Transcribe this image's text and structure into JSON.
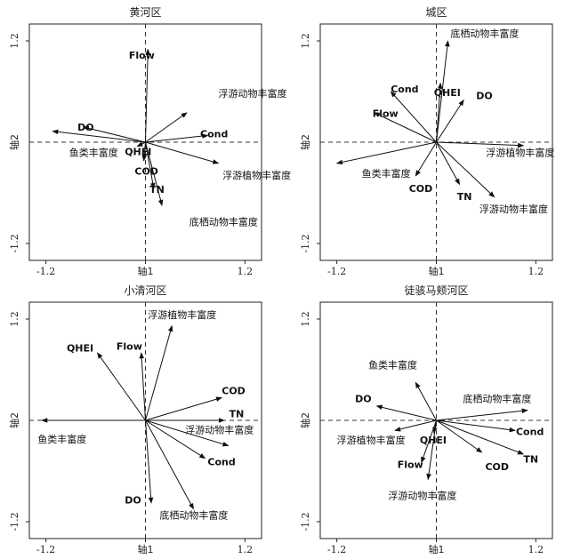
{
  "chart_data": [
    {
      "type": "scatter",
      "title": "黄河区",
      "xlabel": "轴1",
      "ylabel": "轴2",
      "xlim": [
        -1.4,
        1.4
      ],
      "ylim": [
        -1.4,
        1.4
      ],
      "xticks": [
        "-1.2",
        "0",
        "1.2"
      ],
      "yticks": [
        "-1.2",
        "1.2"
      ],
      "xtick_values": [
        -1.2,
        0,
        1.2
      ],
      "ytick_values": [
        -1.2,
        1.2
      ],
      "arrows": [
        {
          "label": "Flow",
          "x": 0.03,
          "y": 1.1,
          "lx": -0.2,
          "ly": 1.02,
          "bold": true
        },
        {
          "label": "浮游动物丰富度",
          "x": 0.5,
          "y": 0.35,
          "lx": 0.88,
          "ly": 0.57,
          "bold": false
        },
        {
          "label": "Cond",
          "x": 0.75,
          "y": 0.08,
          "lx": 0.66,
          "ly": 0.09,
          "bold": true
        },
        {
          "label": "DO",
          "x": -0.75,
          "y": 0.18,
          "lx": -0.82,
          "ly": 0.17,
          "bold": true
        },
        {
          "label": "鱼类丰富度",
          "x": -1.12,
          "y": 0.13,
          "lx": -0.92,
          "ly": -0.13,
          "bold": false
        },
        {
          "label": "QHEI",
          "x": -0.1,
          "y": -0.05,
          "lx": -0.25,
          "ly": -0.12,
          "bold": true
        },
        {
          "label": "浮游植物丰富度",
          "x": 0.88,
          "y": -0.25,
          "lx": 0.93,
          "ly": -0.4,
          "bold": false
        },
        {
          "label": "COD",
          "x": -0.02,
          "y": -0.22,
          "lx": -0.13,
          "ly": -0.35,
          "bold": true
        },
        {
          "label": "TN",
          "x": 0.1,
          "y": -0.55,
          "lx": 0.05,
          "ly": -0.57,
          "bold": true
        },
        {
          "label": "底栖动物丰富度",
          "x": 0.2,
          "y": -0.75,
          "lx": 0.53,
          "ly": -0.95,
          "bold": false
        }
      ]
    },
    {
      "type": "scatter",
      "title": "城区",
      "xlabel": "轴1",
      "ylabel": "轴2",
      "xlim": [
        -1.4,
        1.4
      ],
      "ylim": [
        -1.4,
        1.4
      ],
      "xticks": [
        "-1.2",
        "0",
        "1.2"
      ],
      "yticks": [
        "-1.2",
        "1.2"
      ],
      "xtick_values": [
        -1.2,
        0,
        1.2
      ],
      "ytick_values": [
        -1.2,
        1.2
      ],
      "arrows": [
        {
          "label": "底栖动物丰富度",
          "x": 0.14,
          "y": 1.2,
          "lx": 0.17,
          "ly": 1.28,
          "bold": false
        },
        {
          "label": "QHEI",
          "x": 0.05,
          "y": 0.7,
          "lx": -0.03,
          "ly": 0.58,
          "bold": true
        },
        {
          "label": "Cond",
          "x": -0.55,
          "y": 0.6,
          "lx": -0.55,
          "ly": 0.62,
          "bold": true
        },
        {
          "label": "DO",
          "x": 0.33,
          "y": 0.5,
          "lx": 0.48,
          "ly": 0.54,
          "bold": true
        },
        {
          "label": "Flow",
          "x": -0.75,
          "y": 0.35,
          "lx": -0.77,
          "ly": 0.33,
          "bold": true
        },
        {
          "label": "浮游植物丰富度",
          "x": 1.05,
          "y": -0.04,
          "lx": 0.6,
          "ly": -0.13,
          "bold": false
        },
        {
          "label": "鱼类丰富度",
          "x": -1.2,
          "y": -0.25,
          "lx": -0.9,
          "ly": -0.38,
          "bold": false
        },
        {
          "label": "COD",
          "x": -0.25,
          "y": -0.4,
          "lx": -0.33,
          "ly": -0.56,
          "bold": true
        },
        {
          "label": "TN",
          "x": 0.28,
          "y": -0.5,
          "lx": 0.25,
          "ly": -0.65,
          "bold": true
        },
        {
          "label": "浮游动物丰富度",
          "x": 0.7,
          "y": -0.65,
          "lx": 0.52,
          "ly": -0.8,
          "bold": false
        }
      ]
    },
    {
      "type": "scatter",
      "title": "小清河区",
      "xlabel": "轴1",
      "ylabel": "轴2",
      "xlim": [
        -1.4,
        1.4
      ],
      "ylim": [
        -1.4,
        1.4
      ],
      "xticks": [
        "-1.2",
        "0",
        "1.2"
      ],
      "yticks": [
        "-1.2",
        "1.2"
      ],
      "xtick_values": [
        -1.2,
        0,
        1.2
      ],
      "ytick_values": [
        -1.2,
        1.2
      ],
      "arrows": [
        {
          "label": "浮游植物丰富度",
          "x": 0.32,
          "y": 1.12,
          "lx": 0.03,
          "ly": 1.24,
          "bold": false
        },
        {
          "label": "QHEI",
          "x": -0.58,
          "y": 0.8,
          "lx": -0.95,
          "ly": 0.85,
          "bold": true
        },
        {
          "label": "Flow",
          "x": -0.05,
          "y": 0.8,
          "lx": -0.35,
          "ly": 0.87,
          "bold": true
        },
        {
          "label": "COD",
          "x": 0.92,
          "y": 0.27,
          "lx": 0.92,
          "ly": 0.34,
          "bold": true
        },
        {
          "label": "TN",
          "x": 0.95,
          "y": 0.0,
          "lx": 1.01,
          "ly": 0.07,
          "bold": true
        },
        {
          "label": "鱼类丰富度",
          "x": -1.25,
          "y": 0.0,
          "lx": -1.3,
          "ly": -0.23,
          "bold": false
        },
        {
          "label": "浮游动物丰富度",
          "x": 1.0,
          "y": -0.3,
          "lx": 0.48,
          "ly": -0.12,
          "bold": false
        },
        {
          "label": "Cond",
          "x": 0.72,
          "y": -0.45,
          "lx": 0.75,
          "ly": -0.5,
          "bold": true
        },
        {
          "label": "DO",
          "x": 0.07,
          "y": -0.98,
          "lx": -0.25,
          "ly": -0.95,
          "bold": true
        },
        {
          "label": "底栖动物丰富度",
          "x": 0.58,
          "y": -1.05,
          "lx": 0.17,
          "ly": -1.13,
          "bold": false
        }
      ]
    },
    {
      "type": "scatter",
      "title": "徒骇马颊河区",
      "xlabel": "轴1",
      "ylabel": "轴2",
      "xlim": [
        -1.4,
        1.4
      ],
      "ylim": [
        -1.4,
        1.4
      ],
      "xticks": [
        "-1.2",
        "0",
        "1.2"
      ],
      "yticks": [
        "-1.2",
        "1.2"
      ],
      "xtick_values": [
        -1.2,
        0,
        1.2
      ],
      "ytick_values": [
        -1.2,
        1.2
      ],
      "arrows": [
        {
          "label": "鱼类丰富度",
          "x": -0.25,
          "y": 0.45,
          "lx": -0.82,
          "ly": 0.65,
          "bold": false
        },
        {
          "label": "DO",
          "x": -0.72,
          "y": 0.17,
          "lx": -0.98,
          "ly": 0.25,
          "bold": true
        },
        {
          "label": "底栖动物丰富度",
          "x": 1.1,
          "y": 0.12,
          "lx": 0.32,
          "ly": 0.25,
          "bold": false
        },
        {
          "label": "Cond",
          "x": 0.95,
          "y": -0.12,
          "lx": 0.96,
          "ly": -0.14,
          "bold": true
        },
        {
          "label": "TN",
          "x": 1.05,
          "y": -0.4,
          "lx": 1.05,
          "ly": -0.47,
          "bold": true
        },
        {
          "label": "COD",
          "x": 0.55,
          "y": -0.38,
          "lx": 0.59,
          "ly": -0.56,
          "bold": true
        },
        {
          "label": "浮游植物丰富度",
          "x": -0.5,
          "y": -0.12,
          "lx": -1.2,
          "ly": -0.24,
          "bold": false
        },
        {
          "label": "QHEI",
          "x": -0.03,
          "y": -0.15,
          "lx": -0.2,
          "ly": -0.24,
          "bold": true
        },
        {
          "label": "Flow",
          "x": -0.18,
          "y": -0.5,
          "lx": -0.47,
          "ly": -0.53,
          "bold": true
        },
        {
          "label": "浮游动物丰富度",
          "x": -0.1,
          "y": -0.7,
          "lx": -0.58,
          "ly": -0.9,
          "bold": false
        }
      ]
    }
  ]
}
